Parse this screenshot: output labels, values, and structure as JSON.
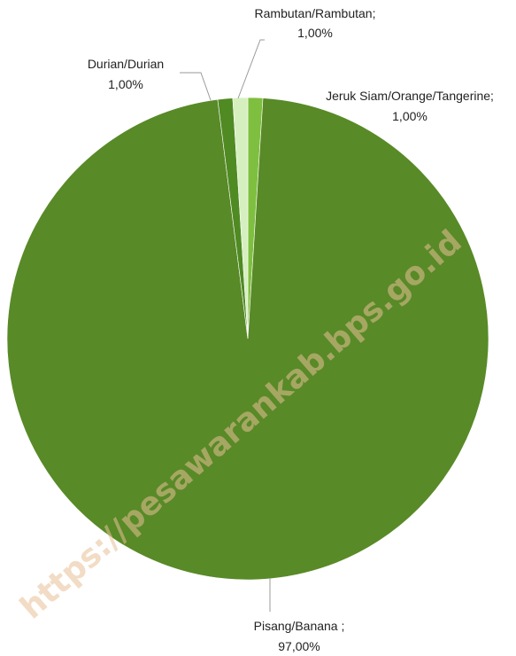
{
  "chart_data": {
    "type": "pie",
    "slices": [
      {
        "label_name": "Rambutan/Rambutan;",
        "label_value": "1,00%",
        "value": 1.0,
        "color": "#d6efbf"
      },
      {
        "label_name": "Jeruk Siam/Orange/Tangerine;",
        "label_value": "1,00%",
        "value": 1.0,
        "color": "#7fbf3f"
      },
      {
        "label_name": "Durian/Durian",
        "label_value": "1,00%",
        "value": 1.0,
        "color": "#4f8a23"
      },
      {
        "label_name": "Pisang/Banana ;",
        "label_value": "97,00%",
        "value": 97.0,
        "color": "#588a27"
      }
    ],
    "legend": "none"
  },
  "watermark": "https://pesawarankab.bps.go.id"
}
